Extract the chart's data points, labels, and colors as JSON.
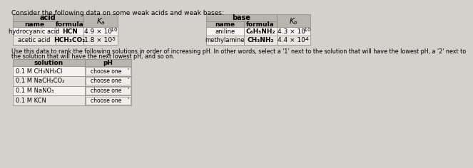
{
  "title": "Consider the following data on some weak acids and weak bases:",
  "title_fontsize": 6.5,
  "bg_color": "#d4d0cb",
  "table_header_bg": "#b8b4ae",
  "table_row_odd": "#e8e5e0",
  "table_row_even": "#f5f3f0",
  "table_border": "#888880",
  "acid_header": "acid",
  "base_header": "base",
  "acid_col_headers": [
    "name",
    "formula"
  ],
  "base_col_headers": [
    "name",
    "formula"
  ],
  "acid_rows": [
    [
      "hydrocyanic acid",
      "HCN",
      "4.9 × 10",
      "-10"
    ],
    [
      "acetic acid",
      "HCH₃CO₂",
      "1.8 × 10",
      "-5"
    ]
  ],
  "base_rows": [
    [
      "aniline",
      "C₆H₅NH₂",
      "4.3 × 10",
      "-10"
    ],
    [
      "methylamine",
      "CH₃NH₂",
      "4.4 × 10",
      "-4"
    ]
  ],
  "instruction1": "Use this data to rank the following solutions in order of increasing pH. In other words, select a '1' next to the solution that will have the lowest pH, a '2' next to",
  "instruction2": "the solution that will have the next lowest pH, and so on.",
  "instruction_fontsize": 5.8,
  "solution_header": "solution",
  "ph_header": "pH",
  "solutions": [
    "0.1 M CH₃NH₃Cl",
    "0.1 M NaCH₃CO₂",
    "0.1 M NaNO₃",
    "0.1 M KCN"
  ],
  "choose_label": "choose one",
  "choose_bg": "#f0eeea",
  "choose_border": "#999990"
}
